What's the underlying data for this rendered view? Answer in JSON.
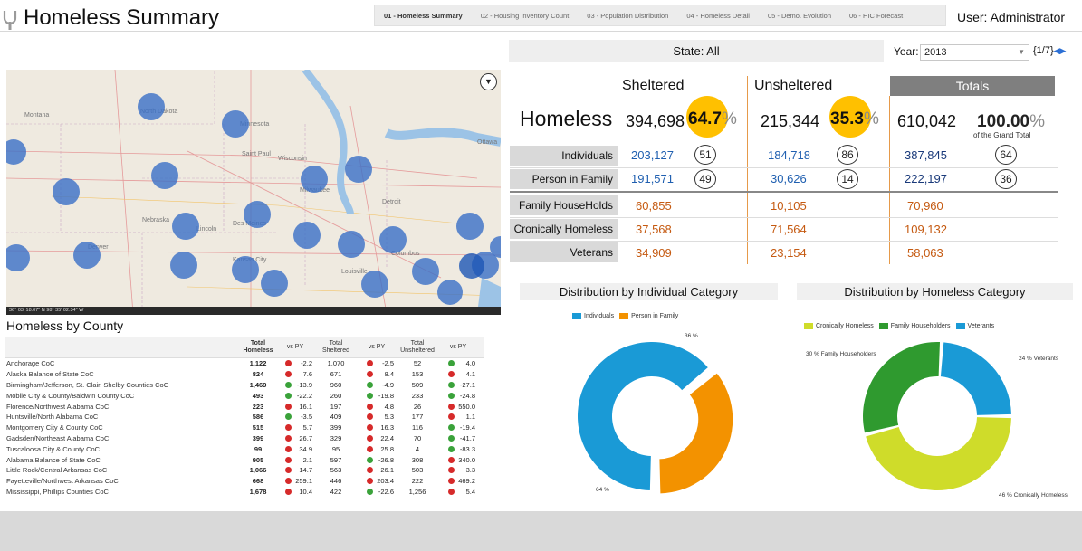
{
  "header": {
    "title": "Homeless Summary",
    "user": "User: Administrator",
    "tabs": [
      "01 - Homeless Summary",
      "02 - Housing Inventory Count",
      "03 - Population Distribution",
      "04 - Homeless Detail",
      "05 - Demo. Evolution",
      "06 - HIC Forecast"
    ]
  },
  "filters": {
    "state": "State:  All",
    "year_label": "Year:",
    "year_value": "2013",
    "pager": "{1/7}"
  },
  "map": {
    "labels": [
      "Montana",
      "North Dakota",
      "Saint Paul",
      "Minnesota",
      "Ottawa",
      "Wisconsin",
      "Milwaukee",
      "Detroit",
      "Nebraska",
      "Des Moines",
      "Lincoln",
      "Denver",
      "Kansas City",
      "Columbus",
      "Louisville"
    ],
    "footer": "36° 03' 18.07\" N 98° 35' 02.34\" W"
  },
  "county": {
    "title": "Homeless by County",
    "headers": [
      "",
      "Total Homeless",
      "vs PY",
      "Total Sheltered",
      "vs PY",
      "Total Unsheltered",
      "vs PY"
    ],
    "rows": [
      {
        "name": "Anchorage CoC",
        "total": "1,122",
        "vs1": "-2.2",
        "s1": "r",
        "sheltered": "1,070",
        "vs2": "-2.5",
        "s2": "r",
        "unsheltered": "52",
        "vs3": "4.0",
        "s3": "g"
      },
      {
        "name": "Alaska Balance of State CoC",
        "total": "824",
        "vs1": "7.6",
        "s1": "r",
        "sheltered": "671",
        "vs2": "8.4",
        "s2": "r",
        "unsheltered": "153",
        "vs3": "4.1",
        "s3": "r"
      },
      {
        "name": "Birmingham/Jefferson, St. Clair, Shelby Counties CoC",
        "total": "1,469",
        "vs1": "-13.9",
        "s1": "g",
        "sheltered": "960",
        "vs2": "-4.9",
        "s2": "g",
        "unsheltered": "509",
        "vs3": "-27.1",
        "s3": "g"
      },
      {
        "name": "Mobile City & County/Baldwin County CoC",
        "total": "493",
        "vs1": "-22.2",
        "s1": "g",
        "sheltered": "260",
        "vs2": "-19.8",
        "s2": "g",
        "unsheltered": "233",
        "vs3": "-24.8",
        "s3": "g"
      },
      {
        "name": "Florence/Northwest Alabama CoC",
        "total": "223",
        "vs1": "16.1",
        "s1": "r",
        "sheltered": "197",
        "vs2": "4.8",
        "s2": "r",
        "unsheltered": "26",
        "vs3": "550.0",
        "s3": "r"
      },
      {
        "name": "Huntsville/North Alabama CoC",
        "total": "586",
        "vs1": "-3.5",
        "s1": "g",
        "sheltered": "409",
        "vs2": "5.3",
        "s2": "r",
        "unsheltered": "177",
        "vs3": "1.1",
        "s3": "r"
      },
      {
        "name": "Montgomery City & County CoC",
        "total": "515",
        "vs1": "5.7",
        "s1": "r",
        "sheltered": "399",
        "vs2": "16.3",
        "s2": "r",
        "unsheltered": "116",
        "vs3": "-19.4",
        "s3": "g"
      },
      {
        "name": "Gadsden/Northeast Alabama CoC",
        "total": "399",
        "vs1": "26.7",
        "s1": "r",
        "sheltered": "329",
        "vs2": "22.4",
        "s2": "r",
        "unsheltered": "70",
        "vs3": "-41.7",
        "s3": "g"
      },
      {
        "name": "Tuscaloosa City & County CoC",
        "total": "99",
        "vs1": "34.9",
        "s1": "r",
        "sheltered": "95",
        "vs2": "25.8",
        "s2": "r",
        "unsheltered": "4",
        "vs3": "-83.3",
        "s3": "g"
      },
      {
        "name": "Alabama Balance of State CoC",
        "total": "905",
        "vs1": "2.1",
        "s1": "r",
        "sheltered": "597",
        "vs2": "-26.8",
        "s2": "g",
        "unsheltered": "308",
        "vs3": "340.0",
        "s3": "r"
      },
      {
        "name": "Little Rock/Central Arkansas CoC",
        "total": "1,066",
        "vs1": "14.7",
        "s1": "r",
        "sheltered": "563",
        "vs2": "26.1",
        "s2": "r",
        "unsheltered": "503",
        "vs3": "3.3",
        "s3": "r"
      },
      {
        "name": "Fayetteville/Northwest Arkansas CoC",
        "total": "668",
        "vs1": "259.1",
        "s1": "r",
        "sheltered": "446",
        "vs2": "203.4",
        "s2": "r",
        "unsheltered": "222",
        "vs3": "469.2",
        "s3": "r"
      },
      {
        "name": "Mississippi, Phillips Counties CoC",
        "total": "1,678",
        "vs1": "10.4",
        "s1": "r",
        "sheltered": "422",
        "vs2": "-22.6",
        "s2": "g",
        "unsheltered": "1,256",
        "vs3": "5.4",
        "s3": "r"
      }
    ]
  },
  "summary": {
    "col_sheltered": "Sheltered",
    "col_unsheltered": "Unsheltered",
    "col_totals": "Totals",
    "homeless_label": "Homeless",
    "sheltered_total": "394,698",
    "sheltered_pct": "64.7",
    "unsheltered_total": "215,344",
    "unsheltered_pct": "35.3",
    "grand_total": "610,042",
    "grand_pct": "100.00",
    "pct_sign": "%",
    "grand_label": "of the Grand Total",
    "rows": [
      {
        "label": "Individuals",
        "sheltered": "203,127",
        "s_rank": "51",
        "unsheltered": "184,718",
        "u_rank": "86",
        "total": "387,845",
        "t_rank": "64"
      },
      {
        "label": "Person in Family",
        "sheltered": "191,571",
        "s_rank": "49",
        "unsheltered": "30,626",
        "u_rank": "14",
        "total": "222,197",
        "t_rank": "36"
      },
      {
        "label": "Family HouseHolds",
        "sheltered": "60,855",
        "unsheltered": "10,105",
        "total": "70,960"
      },
      {
        "label": "Cronically Homeless",
        "sheltered": "37,568",
        "unsheltered": "71,564",
        "total": "109,132"
      },
      {
        "label": "Veterans",
        "sheltered": "34,909",
        "unsheltered": "23,154",
        "total": "58,063"
      }
    ]
  },
  "donut1": {
    "title": "Distribution by Individual Category",
    "legend": [
      "Individuals",
      "Person in Family"
    ],
    "colors": [
      "#1a9ad6",
      "#f39200"
    ],
    "values": [
      64,
      36
    ],
    "callouts": [
      "64 %",
      "36 %"
    ]
  },
  "donut2": {
    "title": "Distribution by Homeless Category",
    "legend": [
      "Cronically Homeless",
      "Family Householders",
      "Veterants"
    ],
    "colors": [
      "#cfdc2a",
      "#2f9a2f",
      "#1a9ad6"
    ],
    "values": [
      46,
      30,
      24
    ],
    "callouts": [
      "46 % Cronically Homeless",
      "30 % Family Householders",
      "24 % Veterants"
    ]
  }
}
